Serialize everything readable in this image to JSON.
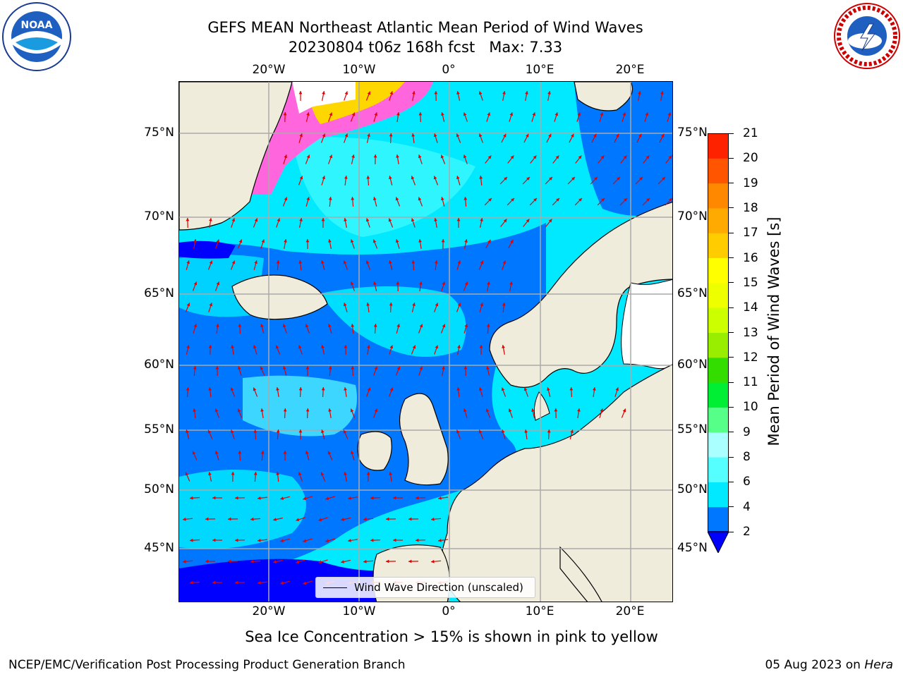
{
  "title": {
    "line1": "GEFS MEAN Northeast Atlantic Mean Period of Wind Waves",
    "line2": "20230804 t06z 168h fcst   Max: 7.33"
  },
  "logos": {
    "left": {
      "name": "noaa-logo",
      "text": "NOAA"
    },
    "right": {
      "name": "nws-logo",
      "text": "NATIONAL WEATHER SERVICE"
    }
  },
  "map": {
    "lon_ticks": [
      "20°W",
      "10°W",
      "0°",
      "10°E",
      "20°E"
    ],
    "lat_ticks": [
      "75°N",
      "70°N",
      "65°N",
      "60°N",
      "55°N",
      "50°N",
      "45°N"
    ],
    "legend_label": "Wind Wave Direction (unscaled)",
    "colors": {
      "ocean_low": "#0077ff",
      "ocean_mid": "#00e9ff",
      "ocean_hi": "#55ffff",
      "deep_blue": "#0000ff",
      "land": "#efecdc",
      "ice_pink": "#ff66dd",
      "ice_yellow": "#ffd700",
      "arrow": "#e00000",
      "grid": "#aaaaaa"
    }
  },
  "colorbar": {
    "label": "Mean Period of Wind Waves [s]",
    "ticks": [
      "2",
      "4",
      "6",
      "8",
      "9",
      "10",
      "11",
      "12",
      "13",
      "14",
      "15",
      "16",
      "17",
      "18",
      "19",
      "20",
      "21"
    ],
    "colors": [
      "#0077ff",
      "#00e9ff",
      "#55ffff",
      "#aaffff",
      "#55ff88",
      "#00ee33",
      "#33dd00",
      "#99ee00",
      "#ccff00",
      "#eeff00",
      "#ffff00",
      "#ffcc00",
      "#ffaa00",
      "#ff8800",
      "#ff5500",
      "#ff2200"
    ],
    "under_color": "#0000ff"
  },
  "footer": {
    "ice_note": "Sea Ice Concentration > 15% is shown in pink to yellow",
    "left": "NCEP/EMC/Verification Post Processing Product Generation Branch",
    "right_date": "05 Aug 2023 on ",
    "right_host": "Hera"
  }
}
